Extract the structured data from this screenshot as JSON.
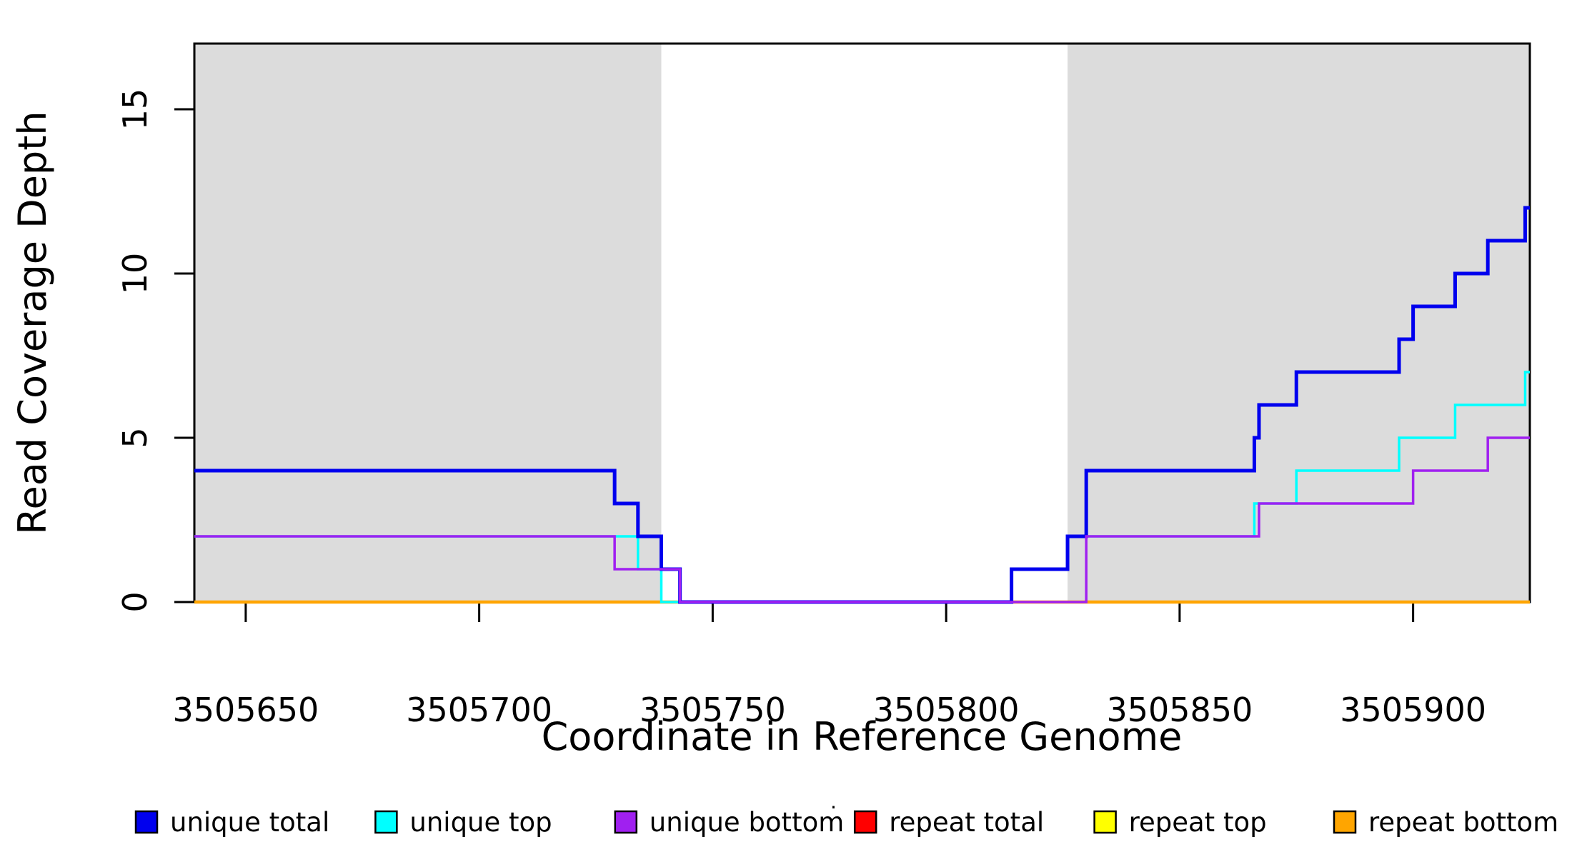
{
  "chart_data": {
    "type": "line",
    "subtype": "step-coverage",
    "title": "",
    "xlabel": "Coordinate in Reference Genome",
    "ylabel": "Read Coverage Depth",
    "xlim": [
      3505639,
      3505925
    ],
    "ylim": [
      0,
      17
    ],
    "x_ticks": [
      3505650,
      3505700,
      3505750,
      3505800,
      3505850,
      3505900
    ],
    "y_ticks": [
      0,
      5,
      10,
      15
    ],
    "grid": false,
    "legend_position": "bottom",
    "background_bands": {
      "color": "#DCDCDC",
      "regions": [
        [
          3505639,
          3505739
        ],
        [
          3505826,
          3505925
        ]
      ]
    },
    "series": [
      {
        "name": "repeat total",
        "color": "#FF0000",
        "line_width": 3,
        "steps": [
          [
            3505639,
            0
          ]
        ]
      },
      {
        "name": "repeat top",
        "color": "#FFFF00",
        "line_width": 3,
        "steps": [
          [
            3505639,
            0
          ]
        ]
      },
      {
        "name": "repeat bottom",
        "color": "#FFA500",
        "line_width": 4.5,
        "steps": [
          [
            3505639,
            0
          ]
        ]
      },
      {
        "name": "unique top",
        "color": "#00FFFF",
        "line_width": 3.5,
        "steps": [
          [
            3505639,
            2
          ],
          [
            3505734,
            1
          ],
          [
            3505739,
            0
          ],
          [
            3505814,
            1
          ],
          [
            3505826,
            2
          ],
          [
            3505866,
            3
          ],
          [
            3505875,
            4
          ],
          [
            3505897,
            5
          ],
          [
            3505909,
            6
          ],
          [
            3505924,
            7
          ]
        ]
      },
      {
        "name": "unique total",
        "color": "#0000EE",
        "line_width": 5,
        "steps": [
          [
            3505639,
            4
          ],
          [
            3505729,
            3
          ],
          [
            3505734,
            2
          ],
          [
            3505739,
            1
          ],
          [
            3505743,
            0
          ],
          [
            3505814,
            1
          ],
          [
            3505826,
            2
          ],
          [
            3505830,
            4
          ],
          [
            3505866,
            5
          ],
          [
            3505867,
            6
          ],
          [
            3505875,
            7
          ],
          [
            3505897,
            8
          ],
          [
            3505900,
            9
          ],
          [
            3505909,
            10
          ],
          [
            3505916,
            11
          ],
          [
            3505924,
            12
          ]
        ]
      },
      {
        "name": "unique bottom",
        "color": "#A020F0",
        "line_width": 3.5,
        "steps": [
          [
            3505639,
            2
          ],
          [
            3505729,
            1
          ],
          [
            3505743,
            0
          ],
          [
            3505830,
            2
          ],
          [
            3505867,
            3
          ],
          [
            3505900,
            4
          ],
          [
            3505916,
            5
          ]
        ]
      }
    ],
    "legend": [
      {
        "label": "unique total",
        "color": "#0000EE"
      },
      {
        "label": "unique top",
        "color": "#00FFFF"
      },
      {
        "label": "unique bottom",
        "color": "#A020F0"
      },
      {
        "label": "repeat total",
        "color": "#FF0000"
      },
      {
        "label": "repeat top",
        "color": "#FFFF00"
      },
      {
        "label": "repeat bottom",
        "color": "#FFA500"
      }
    ],
    "stray_mark": "·",
    "axis_color": "#000000"
  }
}
